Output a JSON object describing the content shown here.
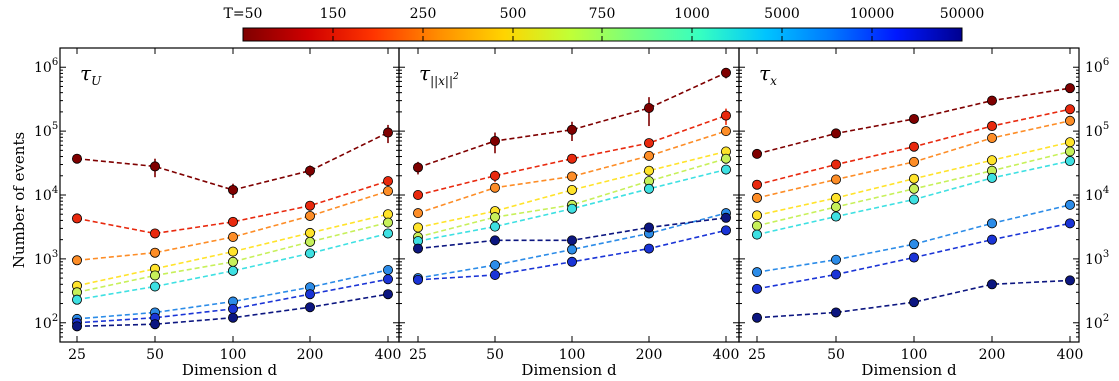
{
  "colorbar": {
    "tick_labels": [
      "T=50",
      "150",
      "250",
      "500",
      "750",
      "1000",
      "5000",
      "10000",
      "50000"
    ],
    "colors": [
      "#7f0000",
      "#d00000",
      "#ff3500",
      "#ff8e00",
      "#ffd400",
      "#c1ff36",
      "#76ff81",
      "#36ffc1",
      "#00c4ff",
      "#0078ff",
      "#0018ff",
      "#00008f"
    ]
  },
  "axes": {
    "ylabel": "Number of events",
    "xlabel": "Dimension d",
    "x_tick_labels": [
      "25",
      "50",
      "100",
      "200",
      "400"
    ],
    "y_tick_labels": [
      "10",
      "10",
      "10",
      "10",
      "10"
    ],
    "y_tick_exponents": [
      "2",
      "3",
      "4",
      "5",
      "6"
    ]
  },
  "chart_data": [
    {
      "type": "line",
      "panel_label": "τ_U",
      "x": [
        25,
        50,
        100,
        200,
        400
      ],
      "yscale": "log",
      "ylim": [
        50,
        2000000
      ],
      "grid": false,
      "series": [
        {
          "name": "50",
          "color": "#7f0000",
          "values": [
            37000,
            28000,
            12000,
            24000,
            95000
          ],
          "errors": [
            1,
            9000,
            3000,
            5000,
            30000
          ]
        },
        {
          "name": "150",
          "color": "#e8290e",
          "values": [
            4300,
            2500,
            3800,
            6800,
            16500
          ],
          "errors": [
            1,
            1,
            1,
            1,
            1
          ]
        },
        {
          "name": "250",
          "color": "#fd8d27",
          "values": [
            950,
            1250,
            2200,
            4700,
            11500
          ],
          "errors": [
            1,
            1,
            1,
            1,
            1
          ]
        },
        {
          "name": "500",
          "color": "#ffe32b",
          "values": [
            380,
            700,
            1300,
            2550,
            5000
          ],
          "errors": [
            1,
            1,
            1,
            1,
            1
          ]
        },
        {
          "name": "750",
          "color": "#c7f05a",
          "values": [
            300,
            550,
            900,
            1850,
            3700
          ],
          "errors": [
            1,
            1,
            1,
            1,
            1
          ]
        },
        {
          "name": "1000",
          "color": "#3ee0e2",
          "values": [
            230,
            370,
            650,
            1220,
            2500
          ],
          "errors": [
            1,
            1,
            1,
            1,
            1
          ]
        },
        {
          "name": "5000",
          "color": "#2c8ce8",
          "values": [
            115,
            145,
            215,
            360,
            670
          ],
          "errors": [
            1,
            1,
            1,
            1,
            1
          ]
        },
        {
          "name": "10000",
          "color": "#1a34d6",
          "values": [
            100,
            120,
            165,
            280,
            480
          ],
          "errors": [
            1,
            1,
            1,
            1,
            1
          ]
        },
        {
          "name": "50000",
          "color": "#0c1680",
          "values": [
            88,
            95,
            120,
            175,
            280
          ],
          "errors": [
            1,
            1,
            1,
            1,
            1
          ]
        }
      ]
    },
    {
      "type": "line",
      "panel_label": "τ_||x||²",
      "x": [
        25,
        50,
        100,
        200,
        400
      ],
      "yscale": "log",
      "ylim": [
        50,
        2000000
      ],
      "grid": false,
      "series": [
        {
          "name": "50",
          "color": "#7f0000",
          "values": [
            27000,
            70000,
            105000,
            230000,
            820000
          ],
          "errors": [
            6000,
            25000,
            35000,
            110000,
            150000
          ]
        },
        {
          "name": "150",
          "color": "#e8290e",
          "values": [
            10000,
            20000,
            37000,
            65000,
            175000
          ],
          "errors": [
            1,
            4000,
            5000,
            1,
            50000
          ]
        },
        {
          "name": "250",
          "color": "#fd8d27",
          "values": [
            5200,
            13000,
            19500,
            41000,
            100000
          ],
          "errors": [
            1,
            1,
            1,
            1,
            1
          ]
        },
        {
          "name": "500",
          "color": "#ffe32b",
          "values": [
            3100,
            5600,
            12000,
            24000,
            48000
          ],
          "errors": [
            1,
            1,
            1,
            1,
            1
          ]
        },
        {
          "name": "750",
          "color": "#c7f05a",
          "values": [
            2200,
            4500,
            7000,
            16500,
            37000
          ],
          "errors": [
            1,
            1,
            1,
            1,
            1
          ]
        },
        {
          "name": "1000",
          "color": "#3ee0e2",
          "values": [
            1900,
            3200,
            6100,
            12500,
            25000
          ],
          "errors": [
            1,
            1,
            1,
            1,
            1
          ]
        },
        {
          "name": "5000",
          "color": "#2c8ce8",
          "values": [
            500,
            800,
            1400,
            2500,
            5200
          ],
          "errors": [
            1,
            1,
            1,
            1,
            1
          ]
        },
        {
          "name": "10000",
          "color": "#1a34d6",
          "values": [
            470,
            560,
            900,
            1450,
            2800
          ],
          "errors": [
            1,
            1,
            1,
            1,
            1
          ]
        },
        {
          "name": "50000",
          "color": "#0c1680",
          "values": [
            1450,
            1950,
            1950,
            3100,
            4400
          ],
          "errors": [
            1,
            1,
            1,
            1,
            1
          ]
        }
      ]
    },
    {
      "type": "line",
      "panel_label": "τ_x",
      "x": [
        25,
        50,
        100,
        200,
        400
      ],
      "yscale": "log",
      "ylim": [
        50,
        2000000
      ],
      "grid": false,
      "series": [
        {
          "name": "50",
          "color": "#7f0000",
          "values": [
            44000,
            92000,
            155000,
            300000,
            470000
          ],
          "errors": [
            1,
            12000,
            1,
            30000,
            1
          ]
        },
        {
          "name": "150",
          "color": "#e8290e",
          "values": [
            14500,
            30000,
            57000,
            120000,
            220000
          ],
          "errors": [
            1,
            1,
            1,
            1,
            1
          ]
        },
        {
          "name": "250",
          "color": "#fd8d27",
          "values": [
            9000,
            17500,
            33000,
            78000,
            145000
          ],
          "errors": [
            1,
            1,
            1,
            1,
            1
          ]
        },
        {
          "name": "500",
          "color": "#ffe32b",
          "values": [
            4800,
            9000,
            18000,
            35000,
            67000
          ],
          "errors": [
            1,
            1,
            1,
            1,
            1
          ]
        },
        {
          "name": "750",
          "color": "#c7f05a",
          "values": [
            3300,
            6500,
            12500,
            24000,
            48000
          ],
          "errors": [
            1,
            1,
            1,
            1,
            1
          ]
        },
        {
          "name": "1000",
          "color": "#3ee0e2",
          "values": [
            2400,
            4600,
            8500,
            18500,
            34000
          ],
          "errors": [
            1,
            1,
            1,
            1,
            1
          ]
        },
        {
          "name": "5000",
          "color": "#2c8ce8",
          "values": [
            620,
            970,
            1700,
            3600,
            7000
          ],
          "errors": [
            1,
            1,
            1,
            1,
            1
          ]
        },
        {
          "name": "10000",
          "color": "#1a34d6",
          "values": [
            340,
            570,
            1050,
            2000,
            3600
          ],
          "errors": [
            1,
            1,
            1,
            1,
            1
          ]
        },
        {
          "name": "50000",
          "color": "#0c1680",
          "values": [
            120,
            145,
            210,
            400,
            460
          ],
          "errors": [
            1,
            1,
            1,
            1,
            1
          ]
        }
      ]
    }
  ]
}
